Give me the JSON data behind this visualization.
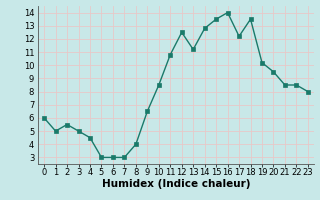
{
  "x": [
    0,
    1,
    2,
    3,
    4,
    5,
    6,
    7,
    8,
    9,
    10,
    11,
    12,
    13,
    14,
    15,
    16,
    17,
    18,
    19,
    20,
    21,
    22,
    23
  ],
  "y": [
    6.0,
    5.0,
    5.5,
    5.0,
    4.5,
    3.0,
    3.0,
    3.0,
    4.0,
    6.5,
    8.5,
    10.8,
    12.5,
    11.2,
    12.8,
    13.5,
    14.0,
    12.2,
    13.5,
    10.2,
    9.5,
    8.5,
    8.5,
    8.0
  ],
  "line_color": "#1a7a6a",
  "marker_color": "#1a7a6a",
  "bg_color": "#c8e8e8",
  "grid_color": "#e8c8c8",
  "xlabel": "Humidex (Indice chaleur)",
  "xlabel_fontsize": 7.5,
  "xlim": [
    -0.5,
    23.5
  ],
  "ylim": [
    2.5,
    14.5
  ],
  "yticks": [
    3,
    4,
    5,
    6,
    7,
    8,
    9,
    10,
    11,
    12,
    13,
    14
  ],
  "xticks": [
    0,
    1,
    2,
    3,
    4,
    5,
    6,
    7,
    8,
    9,
    10,
    11,
    12,
    13,
    14,
    15,
    16,
    17,
    18,
    19,
    20,
    21,
    22,
    23
  ],
  "tick_fontsize": 6,
  "marker_size": 2.5,
  "line_width": 1.0
}
